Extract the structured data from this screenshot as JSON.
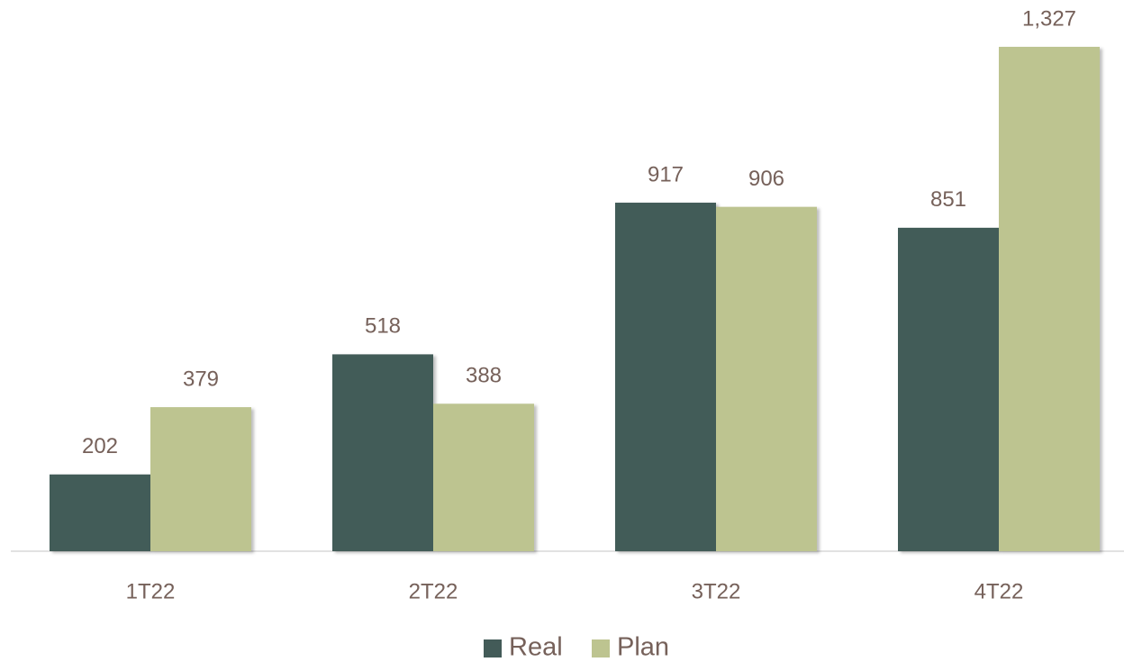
{
  "chart_data": {
    "type": "bar",
    "categories": [
      "1T22",
      "2T22",
      "3T22",
      "4T22"
    ],
    "series": [
      {
        "name": "Real",
        "color": "#435b58",
        "values": [
          202,
          518,
          917,
          851
        ]
      },
      {
        "name": "Plan",
        "color": "#bdc490",
        "values": [
          379,
          388,
          906,
          1327
        ],
        "value_labels": [
          "379",
          "388",
          "906",
          "1,327"
        ]
      }
    ],
    "legend": "bottom"
  }
}
